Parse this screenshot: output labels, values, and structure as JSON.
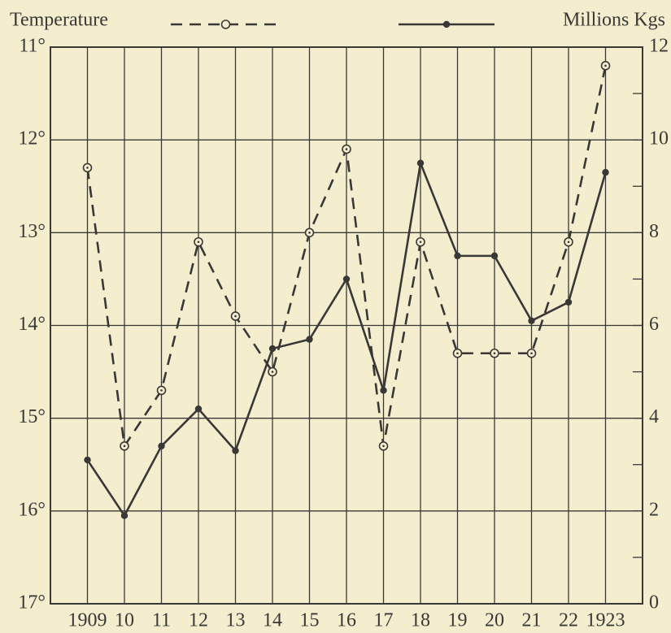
{
  "chart_data": {
    "type": "line",
    "categories": [
      "1909",
      "10",
      "11",
      "12",
      "13",
      "14",
      "15",
      "16",
      "17",
      "18",
      "19",
      "20",
      "21",
      "22",
      "1923"
    ],
    "series": [
      {
        "name": "Temperature",
        "color": "#3a3836",
        "line_style": "dashed",
        "marker": "open-circle",
        "axis": "y",
        "values": [
          12.3,
          15.3,
          14.7,
          13.1,
          13.9,
          14.5,
          13.0,
          12.1,
          15.3,
          13.1,
          14.3,
          14.3,
          14.3,
          13.1,
          11.2
        ]
      },
      {
        "name": "Millions Kgs",
        "color": "#3a3836",
        "line_style": "solid",
        "marker": "filled-circle",
        "axis": "y2",
        "values": [
          3.1,
          1.9,
          3.4,
          4.2,
          3.3,
          5.5,
          5.7,
          7.0,
          4.6,
          9.5,
          7.5,
          7.5,
          6.1,
          6.5,
          9.3
        ]
      }
    ],
    "ylim": [
      11,
      17
    ],
    "yinverted": true,
    "yticks": [
      {
        "value": 11,
        "label": "11°"
      },
      {
        "value": 12,
        "label": "12°"
      },
      {
        "value": 13,
        "label": "13°"
      },
      {
        "value": 14,
        "label": "14°"
      },
      {
        "value": 15,
        "label": "15°"
      },
      {
        "value": 16,
        "label": "16°"
      },
      {
        "value": 17,
        "label": "17°"
      }
    ],
    "y2lim": [
      0,
      12
    ],
    "y2ticks": [
      0,
      2,
      4,
      6,
      8,
      10,
      12
    ],
    "y2minorticks": [
      1,
      3,
      5,
      7,
      9,
      11
    ],
    "grid": true
  }
}
